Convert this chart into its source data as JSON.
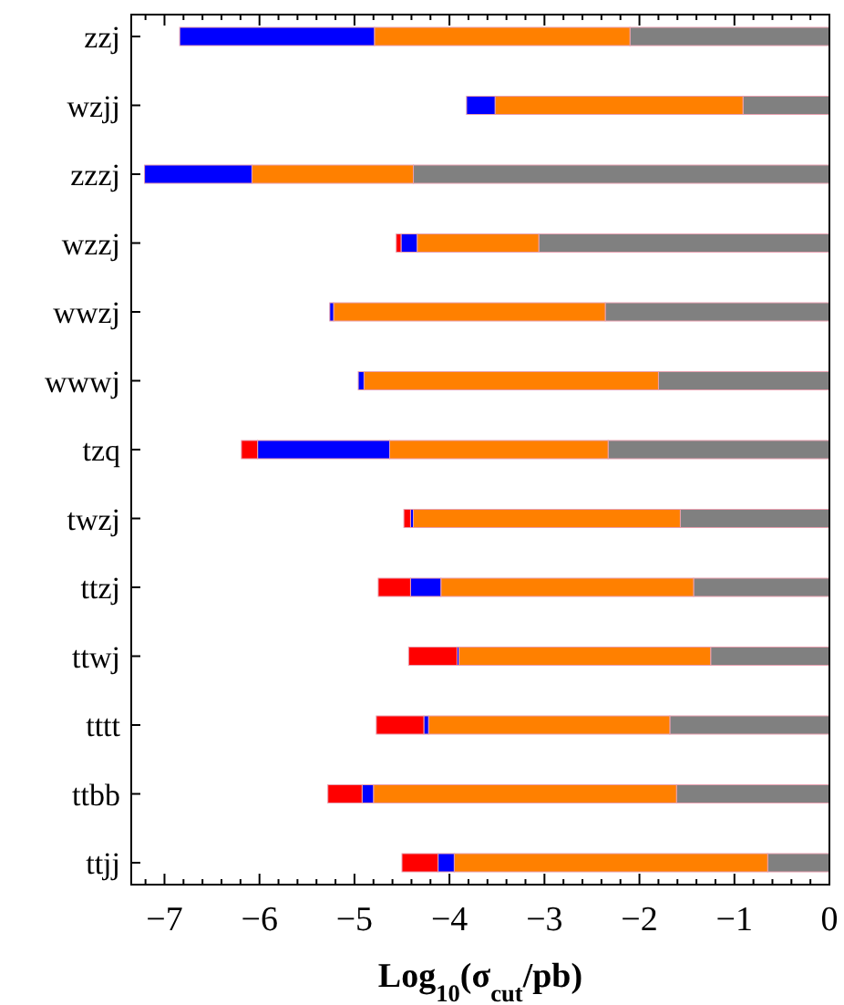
{
  "chart_data": {
    "type": "bar",
    "orientation": "horizontal",
    "xlabel": "Log$_{10}$(σ$_{cut}$/pb)",
    "categories": [
      "zzj",
      "wzjj",
      "zzzj",
      "wzzj",
      "wwzj",
      "wwwj",
      "tzq",
      "twzj",
      "ttzj",
      "ttwj",
      "tttt",
      "ttbb",
      "ttjj"
    ],
    "series": [
      {
        "color": "#808080",
        "values": [
          -2.1,
          -0.91,
          -4.38,
          -3.06,
          -2.36,
          -1.8,
          -2.33,
          -1.57,
          -1.43,
          -1.25,
          -1.68,
          -1.61,
          -0.65
        ]
      },
      {
        "color": "#ff8000",
        "values": [
          -2.69,
          -2.61,
          -1.7,
          -1.28,
          -2.86,
          -3.1,
          -2.3,
          -2.81,
          -2.66,
          -2.65,
          -2.54,
          -3.19,
          -3.3
        ]
      },
      {
        "color": "#0000ff",
        "values": [
          -2.05,
          -0.3,
          -1.13,
          -0.17,
          -0.04,
          -0.06,
          -1.39,
          -0.03,
          -0.32,
          -0.02,
          -0.05,
          -0.12,
          -0.17
        ]
      },
      {
        "color": "#ff0000",
        "values": [
          null,
          null,
          null,
          -0.05,
          null,
          null,
          -0.17,
          -0.07,
          -0.34,
          -0.51,
          -0.5,
          -0.36,
          -0.38
        ]
      }
    ],
    "stacked": true,
    "xlim": [
      -7.35,
      0
    ],
    "xticks": [
      -7,
      -6,
      -5,
      -4,
      -3,
      -2,
      -1,
      0,
      {
        "value": -7.2,
        "label": null
      },
      {
        "value": -6.8,
        "label": null
      },
      {
        "value": -6.6,
        "label": null
      },
      {
        "value": -6.4,
        "label": null
      },
      {
        "value": -6.2,
        "label": null
      },
      {
        "value": -5.8,
        "label": null
      },
      {
        "value": -5.6,
        "label": null
      },
      {
        "value": -5.4,
        "label": null
      },
      {
        "value": -5.2,
        "label": null
      },
      {
        "value": -4.8,
        "label": null
      },
      {
        "value": -4.6,
        "label": null
      },
      {
        "value": -4.4,
        "label": null
      },
      {
        "value": -4.2,
        "label": null
      },
      {
        "value": -3.8,
        "label": null
      },
      {
        "value": -3.6,
        "label": null
      },
      {
        "value": -3.4,
        "label": null
      },
      {
        "value": -3.2,
        "label": null
      },
      {
        "value": -2.8,
        "label": null
      },
      {
        "value": -2.6,
        "label": null
      },
      {
        "value": -2.4,
        "label": null
      },
      {
        "value": -2.2,
        "label": null
      },
      {
        "value": -1.8,
        "label": null
      },
      {
        "value": -1.6,
        "label": null
      },
      {
        "value": -1.4,
        "label": null
      },
      {
        "value": -1.2,
        "label": null
      },
      {
        "value": -0.8,
        "label": null
      },
      {
        "value": -0.6,
        "label": null
      },
      {
        "value": -0.4,
        "label": null
      },
      {
        "value": -0.2,
        "label": null
      }
    ],
    "grid": false
  }
}
